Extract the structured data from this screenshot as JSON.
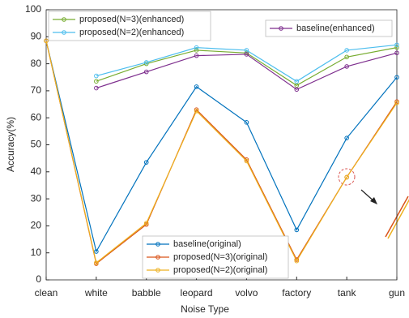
{
  "chart_data": {
    "type": "line",
    "x_label": "Noise Type",
    "y_label": "Accuracy(%)",
    "categories": [
      "clean",
      "white",
      "babble",
      "leopard",
      "volvo",
      "factory",
      "tank",
      "gun"
    ],
    "series": [
      {
        "name": "baseline(original)",
        "color": "#0072bd",
        "values": [
          88.5,
          10.5,
          43.5,
          71.5,
          58.3,
          18.5,
          52.5,
          75
        ]
      },
      {
        "name": "proposed(N=3)(original)",
        "color": "#d95319",
        "values": [
          88.5,
          6,
          20.5,
          63,
          44.5,
          7.5,
          38,
          66
        ]
      },
      {
        "name": "proposed(N=2)(original)",
        "color": "#edb120",
        "values": [
          88.5,
          6.3,
          21,
          62.5,
          44,
          7,
          38,
          65.5
        ]
      },
      {
        "name": "proposed(N=3)(enhanced)",
        "color": "#77ac30",
        "values": [
          null,
          73.5,
          80,
          85,
          84,
          72,
          82.5,
          86
        ]
      },
      {
        "name": "proposed(N=2)(enhanced)",
        "color": "#4dbeee",
        "values": [
          null,
          75.5,
          80.5,
          86,
          85,
          73.5,
          85,
          87
        ]
      },
      {
        "name": "baseline(enhanced)",
        "color": "#7e2f8e",
        "values": [
          null,
          71,
          77,
          83,
          83.5,
          70.5,
          79,
          84
        ]
      }
    ],
    "ylim": [
      0,
      100
    ],
    "yticks": [
      0,
      10,
      20,
      30,
      40,
      50,
      60,
      70,
      80,
      90,
      100
    ]
  }
}
